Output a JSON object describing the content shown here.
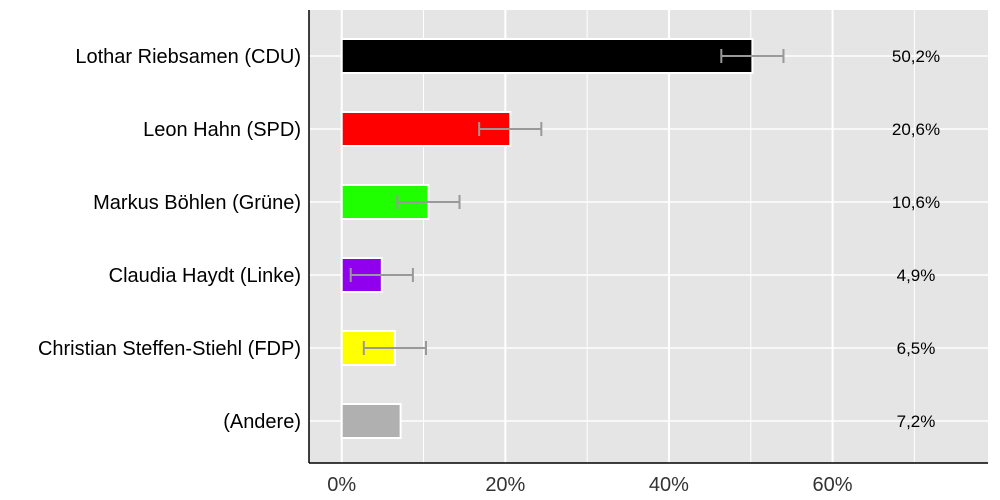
{
  "chart_data": {
    "type": "bar",
    "orientation": "horizontal",
    "title": "",
    "xlabel": "",
    "ylabel": "",
    "categories": [
      "Lothar Riebsamen (CDU)",
      "Leon Hahn (SPD)",
      "Markus Böhlen (Grüne)",
      "Claudia Haydt (Linke)",
      "Christian Steffen-Stiehl (FDP)",
      "(Andere)"
    ],
    "values": [
      50.2,
      20.6,
      10.6,
      4.9,
      6.5,
      7.2
    ],
    "value_labels": [
      "50,2%",
      "20,6%",
      "10,6%",
      "4,9%",
      "6,5%",
      "7,2%"
    ],
    "error_bars": [
      [
        46.4,
        54.0
      ],
      [
        16.8,
        24.4
      ],
      [
        6.8,
        14.4
      ],
      [
        1.1,
        8.7
      ],
      [
        2.7,
        10.3
      ],
      null
    ],
    "colors": [
      "#000000",
      "#ff0000",
      "#1fff00",
      "#9000ee",
      "#ffff00",
      "#b0b0b0"
    ],
    "xlim": [
      -4,
      79
    ],
    "x_ticks": [
      0,
      20,
      40,
      60
    ],
    "x_tick_labels": [
      "0%",
      "20%",
      "40%",
      "60%"
    ],
    "x_minor_ticks": [
      10,
      30,
      50,
      70
    ],
    "grid": true,
    "background": "#e5e5e5",
    "error_bar_color": "#999999"
  }
}
